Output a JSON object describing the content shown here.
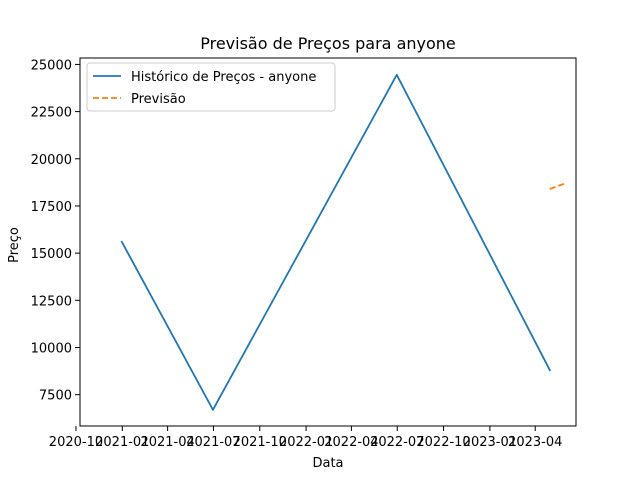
{
  "chart_data": {
    "type": "line",
    "title": "Previsão de Preços para anyone",
    "xlabel": "Data",
    "ylabel": "Preço",
    "ylim": [
      5840,
      25340
    ],
    "xlim": [
      "2020-10-09",
      "2023-06-21"
    ],
    "grid": false,
    "legend_position": "top-left",
    "x_ticks": [
      "2020-10",
      "2021-01",
      "2021-04",
      "2021-07",
      "2021-10",
      "2022-01",
      "2022-04",
      "2022-07",
      "2022-10",
      "2023-01",
      "2023-04"
    ],
    "y_ticks": [
      7500,
      10000,
      12500,
      15000,
      17500,
      20000,
      22500,
      25000
    ],
    "series": [
      {
        "name": "Histórico de Preços - anyone",
        "color": "#1f77b4",
        "style": "solid",
        "x": [
          "2020-12-31",
          "2021-06-30",
          "2022-06-30",
          "2023-04-30"
        ],
        "y": [
          15600,
          6700,
          24450,
          8800
        ]
      },
      {
        "name": "Previsão",
        "color": "#ff7f0e",
        "style": "dashed",
        "x": [
          "2023-04-30",
          "2023-05-31"
        ],
        "y": [
          18400,
          18700
        ]
      }
    ]
  }
}
